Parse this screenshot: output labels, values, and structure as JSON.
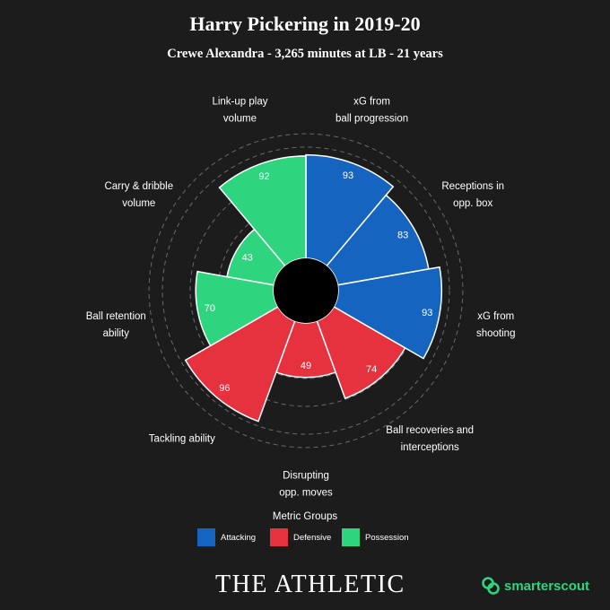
{
  "title": "Harry Pickering in 2019-20",
  "subtitle": "Crewe Alexandra - 3,265 minutes at LB - 21 years",
  "colors": {
    "background": "#1c1c1c",
    "Attacking": "#1565c0",
    "Defensive": "#e5323e",
    "Possession": "#2ed47e"
  },
  "chart_data": {
    "type": "polar-area",
    "rlim": [
      0,
      100
    ],
    "grid": true,
    "categories": [
      {
        "label_lines": [
          "xG from",
          "ball progression"
        ],
        "value": 93,
        "group": "Attacking"
      },
      {
        "label_lines": [
          "Receptions in",
          "opp. box"
        ],
        "value": 83,
        "group": "Attacking"
      },
      {
        "label_lines": [
          "xG from",
          "shooting"
        ],
        "value": 93,
        "group": "Attacking"
      },
      {
        "label_lines": [
          "Ball recoveries and",
          "interceptions"
        ],
        "value": 74,
        "group": "Defensive"
      },
      {
        "label_lines": [
          "Disrupting",
          "opp. moves"
        ],
        "value": 49,
        "group": "Defensive"
      },
      {
        "label_lines": [
          "Tackling ability"
        ],
        "value": 96,
        "group": "Defensive"
      },
      {
        "label_lines": [
          "Ball retention",
          "ability"
        ],
        "value": 70,
        "group": "Possession"
      },
      {
        "label_lines": [
          "Carry & dribble",
          "volume"
        ],
        "value": 43,
        "group": "Possession"
      },
      {
        "label_lines": [
          "Link-up play",
          "volume"
        ],
        "value": 92,
        "group": "Possession"
      }
    ]
  },
  "legend": {
    "title": "Metric Groups",
    "items": [
      {
        "label": "Attacking",
        "color": "#1565c0"
      },
      {
        "label": "Defensive",
        "color": "#e5323e"
      },
      {
        "label": "Possession",
        "color": "#2ed47e"
      }
    ]
  },
  "brand": {
    "left": "THE ATHLETIC",
    "right": "smarterscout"
  }
}
